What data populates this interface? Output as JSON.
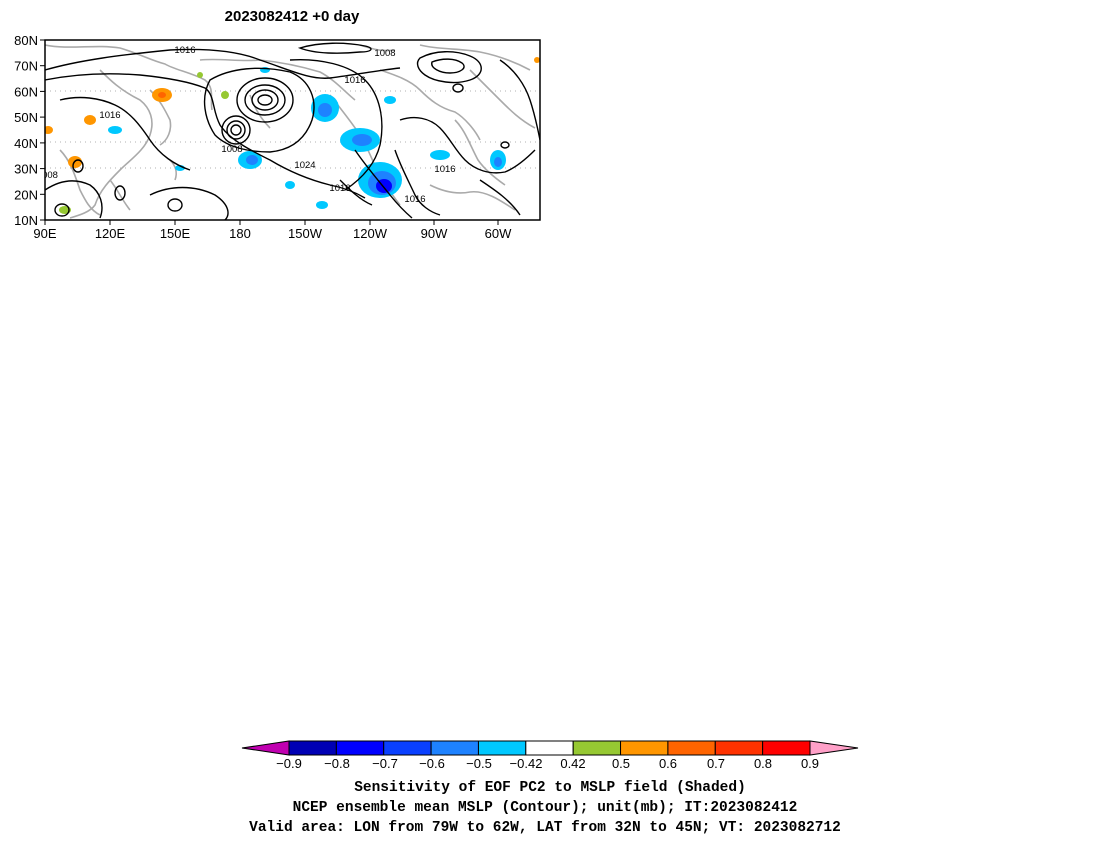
{
  "map": {
    "title": "2023082412  +0 day",
    "lat_labels": [
      "80N",
      "70N",
      "60N",
      "50N",
      "40N",
      "30N",
      "20N",
      "10N"
    ],
    "lon_labels": [
      "90E",
      "120E",
      "150E",
      "180",
      "150W",
      "120W",
      "90W",
      "60W"
    ],
    "contour_labels": [
      "1016",
      "1008",
      "1016",
      "1016",
      "1008",
      "1024",
      "1016",
      "1016",
      "1016",
      "008"
    ],
    "colors": {
      "contour": "#000000",
      "coastline": "#aaaaaa",
      "grid": "#999999"
    }
  },
  "colorbar": {
    "tick_labels": [
      "−0.9",
      "−0.8",
      "−0.7",
      "−0.6",
      "−0.5",
      "−0.42",
      "0.42",
      "0.5",
      "0.6",
      "0.7",
      "0.8",
      "0.9"
    ],
    "colors": [
      "#c000b0",
      "#0000b4",
      "#0000ff",
      "#0a40ff",
      "#1e82ff",
      "#00c8ff",
      "#ffffff",
      "#96c832",
      "#ff9600",
      "#ff6400",
      "#ff3200",
      "#ff0000",
      "#ffa0c8"
    ]
  },
  "caption": {
    "line1": "Sensitivity of EOF PC2 to MSLP field (Shaded)",
    "line2": "NCEP ensemble mean MSLP (Contour); unit(mb); IT:2023082412",
    "line3": "Valid area: LON from 79W to 62W, LAT from 32N to 45N; VT: 2023082712"
  }
}
